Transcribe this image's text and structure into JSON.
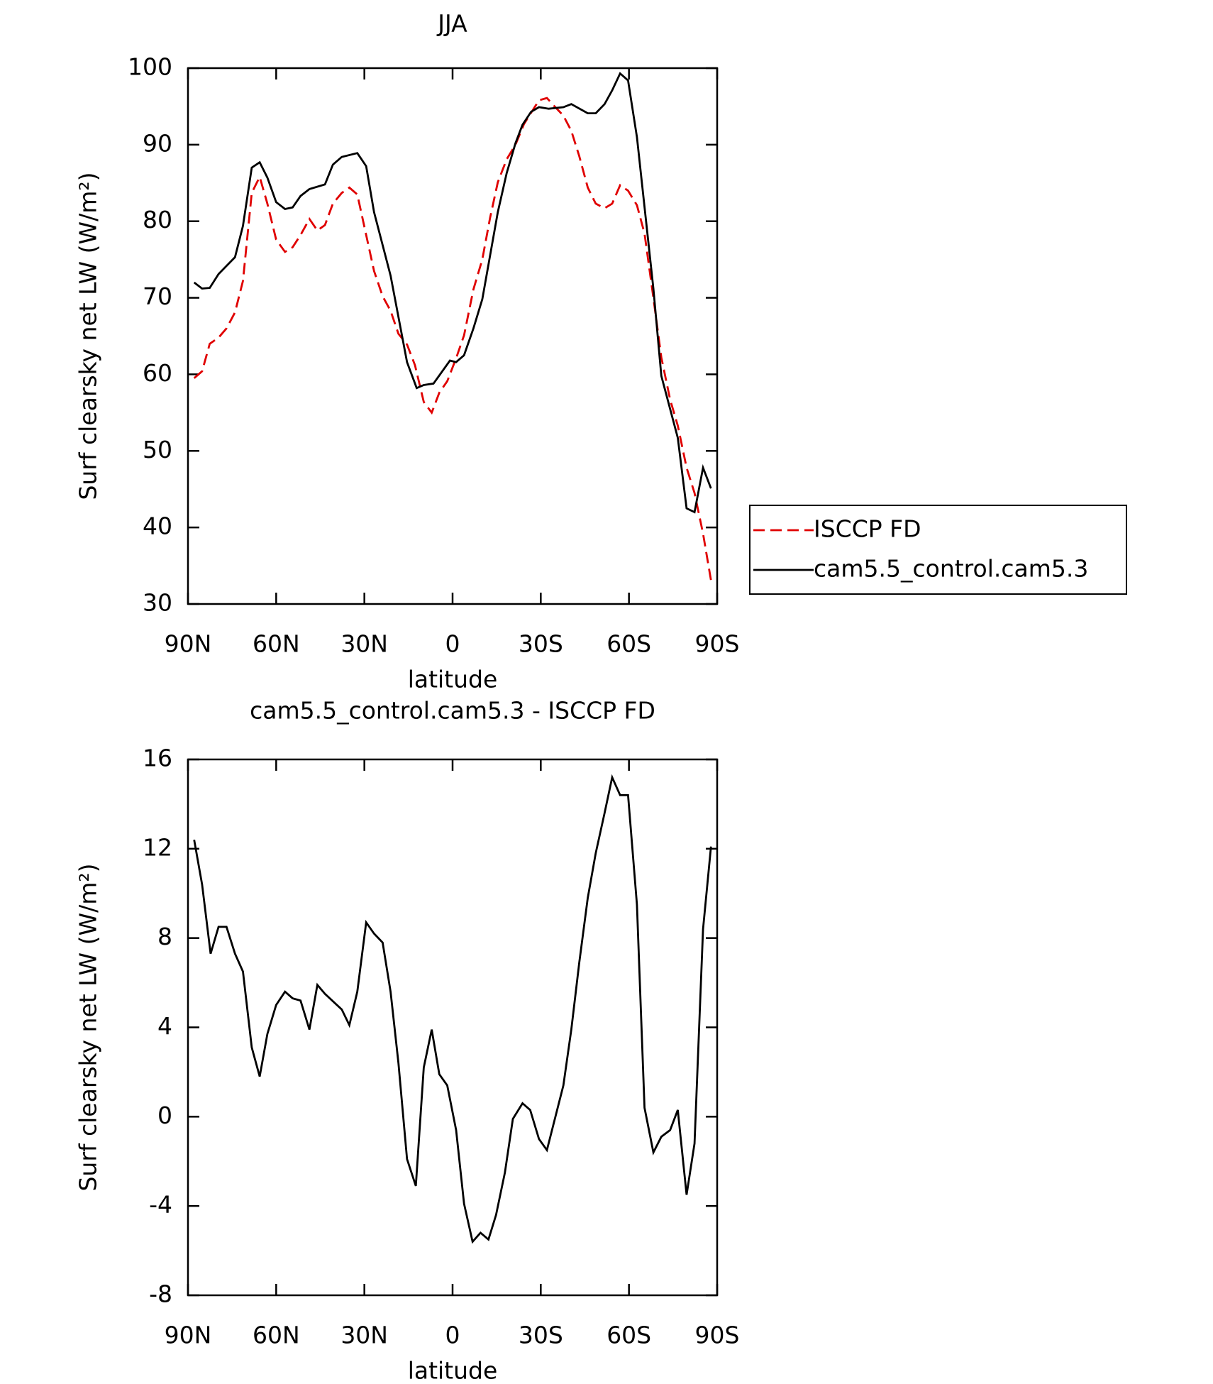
{
  "chart_data": [
    {
      "type": "line",
      "title": "JJA",
      "x_label": "latitude",
      "y_label": "Surf clearsky net LW (W/m²)",
      "xlim": [
        90,
        -90
      ],
      "xticks": [
        {
          "value": 90,
          "label": "90N"
        },
        {
          "value": 60,
          "label": "60N"
        },
        {
          "value": 30,
          "label": "30N"
        },
        0,
        {
          "value": -30,
          "label": "30S"
        },
        {
          "value": -60,
          "label": "60S"
        },
        {
          "value": -90,
          "label": "90S"
        }
      ],
      "ylim": [
        30,
        100
      ],
      "yticks": [
        30,
        40,
        50,
        60,
        70,
        80,
        90,
        100
      ],
      "legend": "right",
      "series": [
        {
          "name": "ISCCP FD",
          "color": "#e00000",
          "dash": true,
          "x": [
            87.9,
            85.2,
            82.6,
            79.6,
            76.9,
            74.0,
            71.3,
            68.3,
            65.6,
            63.0,
            60.0,
            57.0,
            54.4,
            51.7,
            48.7,
            46.0,
            43.4,
            40.7,
            37.7,
            35.1,
            32.4,
            26.7,
            23.8,
            21.1,
            18.4,
            15.5,
            12.8,
            9.8,
            7.1,
            4.5,
            1.8,
            -1.2,
            -3.9,
            -7.1,
            -10.1,
            -12.8,
            -15.4,
            -18.4,
            -21.4,
            -24.3,
            -29.4,
            -32.1,
            -34.7,
            -37.7,
            -40.4,
            -43.1,
            -46.0,
            -48.7,
            -51.7,
            -54.3,
            -57.0,
            -59.7,
            -62.7,
            -65.3,
            -68.3,
            -71.0,
            -74.0,
            -76.6,
            -79.6,
            -82.3,
            -85.2,
            -87.9
          ],
          "values": [
            59.5,
            60.4,
            64.0,
            64.8,
            66.0,
            68.1,
            72.2,
            83.7,
            85.8,
            82.3,
            77.6,
            76.0,
            76.6,
            78.2,
            80.3,
            78.8,
            79.5,
            82.3,
            83.7,
            84.4,
            83.5,
            73.5,
            70.2,
            68.3,
            65.3,
            63.9,
            61.2,
            56.4,
            55.0,
            57.6,
            59.1,
            62.1,
            65.1,
            71.1,
            75.0,
            80.5,
            85.1,
            88.1,
            90.0,
            92.7,
            95.8,
            96.1,
            95.0,
            93.8,
            91.8,
            88.5,
            84.4,
            82.3,
            81.7,
            82.3,
            84.7,
            84.0,
            82.1,
            78.4,
            70.0,
            62.2,
            56.7,
            53.3,
            47.8,
            44.5,
            39.2,
            33.1
          ]
        },
        {
          "name": "cam5.5_control.cam5.3",
          "color": "#000000",
          "dash": false,
          "x": [
            87.9,
            85.2,
            82.6,
            79.6,
            74.0,
            71.3,
            68.3,
            65.6,
            63.0,
            60.0,
            57.0,
            54.4,
            51.7,
            48.7,
            43.4,
            40.7,
            37.7,
            32.4,
            29.4,
            26.7,
            21.1,
            15.5,
            12.2,
            9.8,
            6.5,
            0.9,
            -1.2,
            -3.9,
            -7.1,
            -10.1,
            -15.4,
            -18.4,
            -21.4,
            -23.8,
            -26.7,
            -29.4,
            -32.7,
            -37.7,
            -40.4,
            -46.0,
            -48.7,
            -51.7,
            -54.3,
            -57.0,
            -59.7,
            -62.7,
            -68.3,
            -71.0,
            -76.6,
            -79.6,
            -82.3,
            -85.2,
            -87.9
          ],
          "values": [
            72.0,
            71.2,
            71.3,
            73.1,
            75.3,
            79.4,
            87.0,
            87.7,
            85.7,
            82.5,
            81.6,
            81.8,
            83.3,
            84.2,
            84.8,
            87.4,
            88.4,
            88.9,
            87.2,
            81.2,
            72.9,
            61.6,
            58.2,
            58.6,
            58.8,
            61.8,
            61.6,
            62.5,
            66.0,
            69.8,
            81.2,
            86.3,
            90.2,
            92.6,
            94.3,
            94.9,
            94.7,
            94.9,
            95.3,
            94.1,
            94.1,
            95.3,
            97.1,
            99.3,
            98.4,
            91.0,
            71.2,
            59.8,
            51.7,
            42.5,
            42.0,
            47.8,
            45.1
          ]
        }
      ]
    },
    {
      "type": "line",
      "title": "cam5.5_control.cam5.3 - ISCCP FD",
      "x_label": "latitude",
      "y_label": "Surf clearsky net LW (W/m²)",
      "xlim": [
        90,
        -90
      ],
      "xticks": [
        {
          "value": 90,
          "label": "90N"
        },
        {
          "value": 60,
          "label": "60N"
        },
        {
          "value": 30,
          "label": "30N"
        },
        0,
        {
          "value": -30,
          "label": "30S"
        },
        {
          "value": -60,
          "label": "60S"
        },
        {
          "value": -90,
          "label": "90S"
        }
      ],
      "ylim": [
        -8,
        16
      ],
      "yticks": [
        -8,
        -4,
        0,
        4,
        8,
        12,
        16
      ],
      "series": [
        {
          "color": "#000000",
          "dash": false,
          "x": [
            87.9,
            85.2,
            82.3,
            79.6,
            76.9,
            74.0,
            71.3,
            68.3,
            65.6,
            63.0,
            60.0,
            57.0,
            54.4,
            51.7,
            48.7,
            46.0,
            43.4,
            37.7,
            35.1,
            32.4,
            29.4,
            26.7,
            23.8,
            21.1,
            18.4,
            15.5,
            12.5,
            9.8,
            7.1,
            4.5,
            1.8,
            -1.2,
            -3.9,
            -6.8,
            -9.5,
            -12.2,
            -14.8,
            -17.8,
            -20.5,
            -23.8,
            -26.4,
            -29.4,
            -32.1,
            -37.7,
            -40.4,
            -43.1,
            -46.0,
            -48.7,
            -51.7,
            -54.3,
            -57.0,
            -59.7,
            -62.7,
            -65.3,
            -68.3,
            -71.0,
            -74.0,
            -76.6,
            -79.6,
            -82.3,
            -85.2,
            -87.9
          ],
          "values": [
            12.4,
            10.4,
            7.3,
            8.5,
            8.5,
            7.3,
            6.5,
            3.1,
            1.8,
            3.7,
            5.0,
            5.6,
            5.3,
            5.2,
            3.9,
            5.9,
            5.5,
            4.8,
            4.1,
            5.6,
            8.7,
            8.2,
            7.8,
            5.6,
            2.4,
            -1.9,
            -3.1,
            2.2,
            3.9,
            1.9,
            1.4,
            -0.6,
            -3.9,
            -5.6,
            -5.2,
            -5.5,
            -4.4,
            -2.5,
            -0.1,
            0.6,
            0.3,
            -1.0,
            -1.5,
            1.4,
            3.9,
            6.9,
            9.8,
            11.8,
            13.6,
            15.2,
            14.4,
            14.4,
            9.5,
            0.4,
            -1.6,
            -0.9,
            -0.6,
            0.3,
            -3.5,
            -1.2,
            8.4,
            12.1
          ]
        }
      ]
    }
  ]
}
